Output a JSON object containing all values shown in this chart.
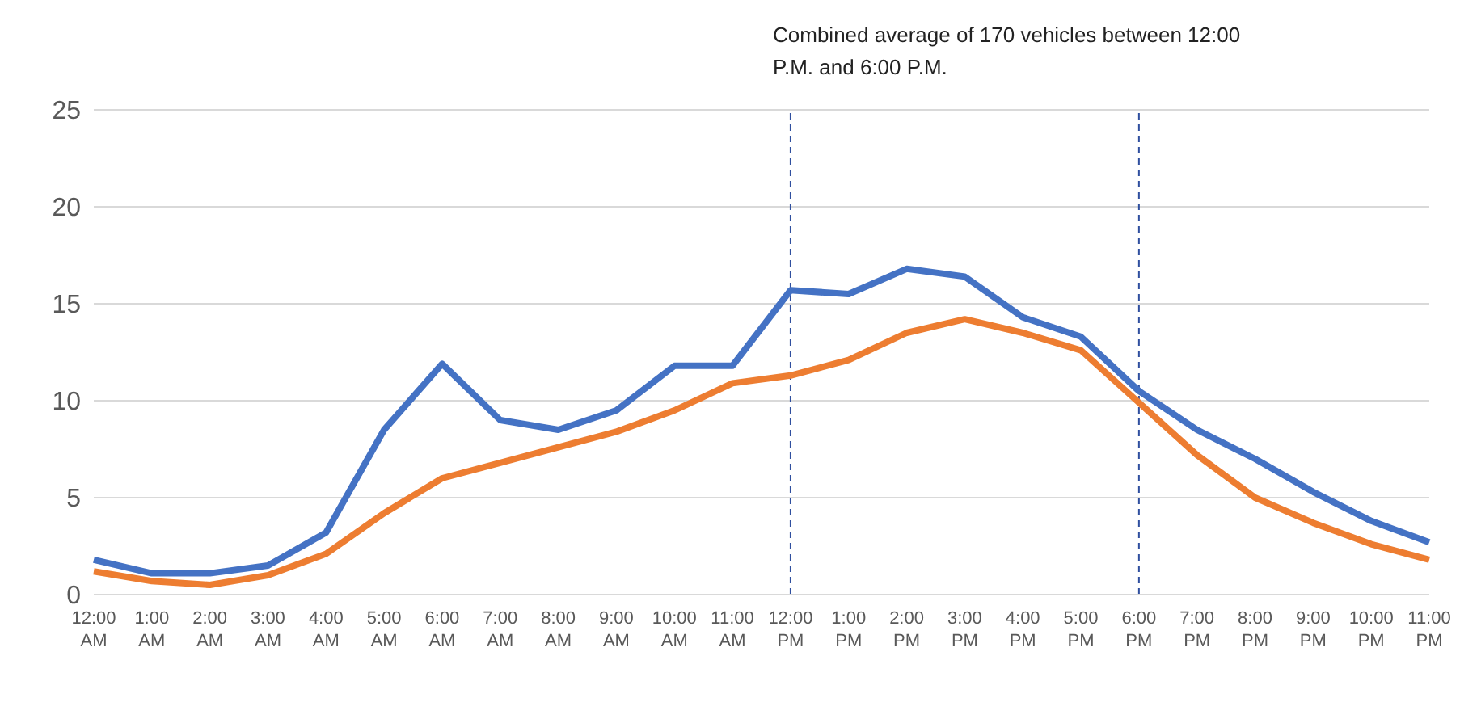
{
  "chart_data": {
    "type": "line",
    "categories": [
      "12:00 AM",
      "1:00 AM",
      "2:00 AM",
      "3:00 AM",
      "4:00 AM",
      "5:00 AM",
      "6:00 AM",
      "7:00 AM",
      "8:00 AM",
      "9:00 AM",
      "10:00 AM",
      "11:00 AM",
      "12:00 PM",
      "1:00 PM",
      "2:00 PM",
      "3:00 PM",
      "4:00 PM",
      "5:00 PM",
      "6:00 PM",
      "7:00 PM",
      "8:00 PM",
      "9:00 PM",
      "10:00 PM",
      "11:00 PM"
    ],
    "series": [
      {
        "color": "#4472c4",
        "values": [
          1.8,
          1.1,
          1.1,
          1.5,
          3.2,
          8.5,
          11.9,
          9.0,
          8.5,
          9.5,
          11.8,
          11.8,
          15.7,
          15.5,
          16.8,
          16.4,
          14.3,
          13.3,
          10.5,
          8.5,
          7.0,
          5.3,
          3.8,
          2.7
        ]
      },
      {
        "color": "#ed7d31",
        "values": [
          1.2,
          0.7,
          0.5,
          1.0,
          2.1,
          4.2,
          6.0,
          6.8,
          7.6,
          8.4,
          9.5,
          10.9,
          11.3,
          12.1,
          13.5,
          14.2,
          13.5,
          12.6,
          9.9,
          7.2,
          5.0,
          3.7,
          2.6,
          1.8
        ]
      }
    ],
    "ylim": [
      0,
      25
    ],
    "yticks": [
      0,
      5,
      10,
      15,
      20,
      25
    ],
    "grid": "y",
    "marker": "none",
    "line_style": "solid",
    "legend": false,
    "ref_lines": [
      {
        "axis": "x",
        "value": "12:00 PM",
        "color": "#2f4f9f",
        "line_style": "dashed"
      },
      {
        "axis": "x",
        "value": "6:00 PM",
        "color": "#2f4f9f",
        "line_style": "dashed"
      }
    ],
    "annotations": [
      "Combined average of 170 vehicles between 12:00 P.M. and 6:00 P.M."
    ]
  }
}
